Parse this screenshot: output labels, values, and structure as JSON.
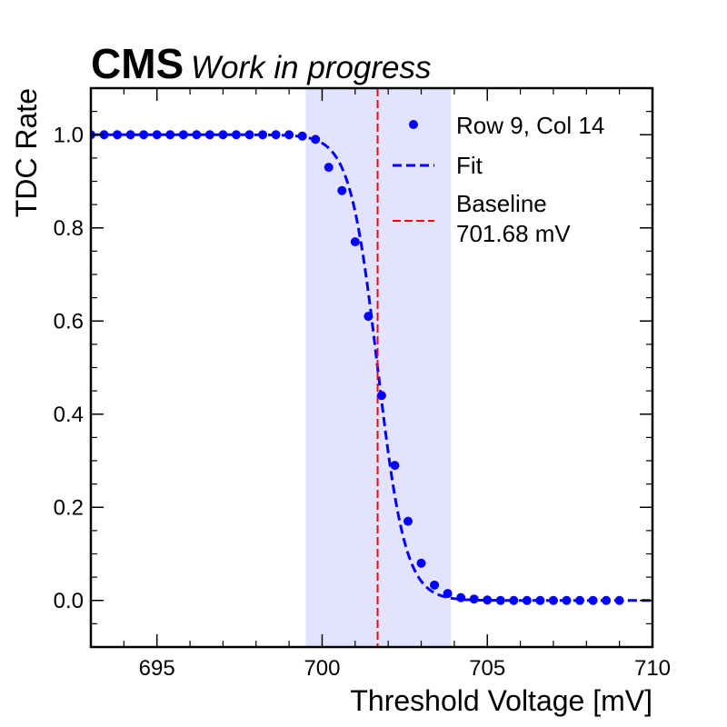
{
  "chart_data": {
    "type": "scatter",
    "header": {
      "experiment": "CMS",
      "status": "Work in progress"
    },
    "xlabel": "Threshold Voltage [mV]",
    "ylabel": "TDC Rate",
    "xlim": [
      693,
      710
    ],
    "ylim": [
      -0.1,
      1.1
    ],
    "x_ticks": [
      "695",
      "700",
      "705",
      "710"
    ],
    "y_ticks": [
      "0.0",
      "0.2",
      "0.4",
      "0.6",
      "0.8",
      "1.0"
    ],
    "x_tick_values": [
      695,
      700,
      705,
      710
    ],
    "y_tick_values": [
      0.0,
      0.2,
      0.4,
      0.6,
      0.8,
      1.0
    ],
    "grid": false,
    "legend_position": "top-right",
    "series": [
      {
        "name": "Row 9, Col 14",
        "kind": "markers",
        "color": "#0000ff",
        "x": [
          693.0,
          693.4,
          693.8,
          694.2,
          694.6,
          695.0,
          695.4,
          695.8,
          696.2,
          696.6,
          697.0,
          697.4,
          697.8,
          698.2,
          698.6,
          699.0,
          699.4,
          699.8,
          700.2,
          700.6,
          701.0,
          701.4,
          701.8,
          702.2,
          702.6,
          703.0,
          703.4,
          703.8,
          704.2,
          704.6,
          705.0,
          705.4,
          705.8,
          706.2,
          706.6,
          707.0,
          707.4,
          707.8,
          708.2,
          708.6,
          709.0
        ],
        "y": [
          1.0,
          1.0,
          1.0,
          1.0,
          1.0,
          1.0,
          1.0,
          1.0,
          1.0,
          1.0,
          1.0,
          1.0,
          1.0,
          1.0,
          1.0,
          1.0,
          0.997,
          0.99,
          0.93,
          0.88,
          0.77,
          0.61,
          0.44,
          0.29,
          0.17,
          0.08,
          0.033,
          0.015,
          0.006,
          0.003,
          0.001,
          0.0,
          0.0,
          0.0,
          0.0,
          0.0,
          0.0,
          0.0,
          0.0,
          0.0,
          0.0
        ]
      },
      {
        "name": "Fit",
        "kind": "dashed-line",
        "color": "#0000ff",
        "model": "sigmoid",
        "center": 701.68,
        "width": 0.42
      },
      {
        "name": "Baseline",
        "label_value": "701.68 mV",
        "kind": "vline",
        "color": "#ff0000",
        "x": 701.68
      }
    ],
    "shaded_band": {
      "x": [
        699.5,
        703.9
      ],
      "color": "#0000ff",
      "opacity": 0.11
    }
  }
}
